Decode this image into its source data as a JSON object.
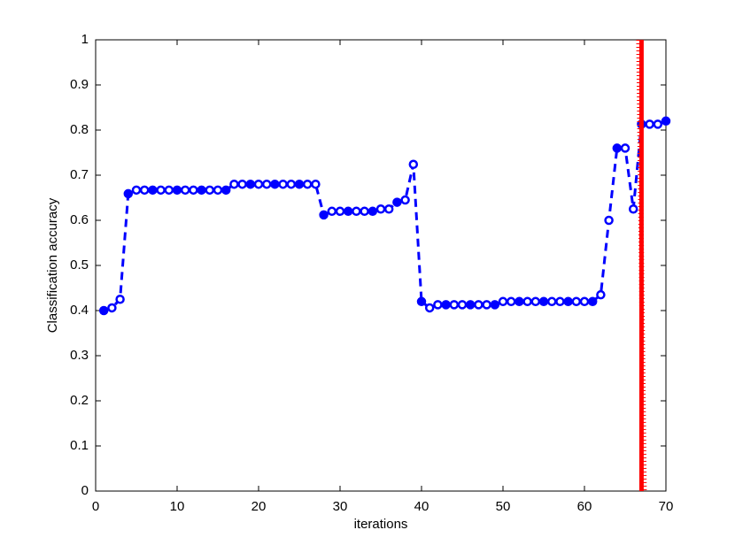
{
  "chart_data": {
    "type": "line",
    "xlabel": "iterations",
    "ylabel": "Classification accuracy",
    "x": [
      1,
      2,
      3,
      4,
      5,
      6,
      7,
      8,
      9,
      10,
      11,
      12,
      13,
      14,
      15,
      16,
      17,
      18,
      19,
      20,
      21,
      22,
      23,
      24,
      25,
      26,
      27,
      28,
      29,
      30,
      31,
      32,
      33,
      34,
      35,
      36,
      37,
      38,
      39,
      40,
      41,
      42,
      43,
      44,
      45,
      46,
      47,
      48,
      49,
      50,
      51,
      52,
      53,
      54,
      55,
      56,
      57,
      58,
      59,
      60,
      61,
      62,
      63,
      64,
      65,
      66,
      67,
      68,
      69,
      70
    ],
    "series": [
      {
        "color": "#0000ff",
        "values": [
          0.4,
          0.406,
          0.425,
          0.659,
          0.667,
          0.667,
          0.667,
          0.667,
          0.667,
          0.667,
          0.667,
          0.667,
          0.667,
          0.667,
          0.667,
          0.667,
          0.68,
          0.68,
          0.68,
          0.68,
          0.68,
          0.68,
          0.68,
          0.68,
          0.68,
          0.68,
          0.68,
          0.612,
          0.62,
          0.62,
          0.62,
          0.62,
          0.62,
          0.62,
          0.625,
          0.625,
          0.64,
          0.645,
          0.724,
          0.42,
          0.406,
          0.413,
          0.413,
          0.413,
          0.413,
          0.413,
          0.413,
          0.413,
          0.413,
          0.42,
          0.42,
          0.42,
          0.42,
          0.42,
          0.42,
          0.42,
          0.42,
          0.42,
          0.42,
          0.42,
          0.42,
          0.435,
          0.6,
          0.76,
          0.76,
          0.625,
          0.813,
          0.813,
          0.813,
          0.82
        ]
      }
    ],
    "vertical_line": {
      "x": 67,
      "color": "#ff0000"
    },
    "xlim": [
      0,
      70
    ],
    "xticks": [
      0,
      10,
      20,
      30,
      40,
      50,
      60,
      70
    ],
    "ylim": [
      0,
      1
    ],
    "yticks": [
      0,
      0.1,
      0.2,
      0.3,
      0.4,
      0.5,
      0.6,
      0.7,
      0.8,
      0.9,
      1
    ]
  }
}
